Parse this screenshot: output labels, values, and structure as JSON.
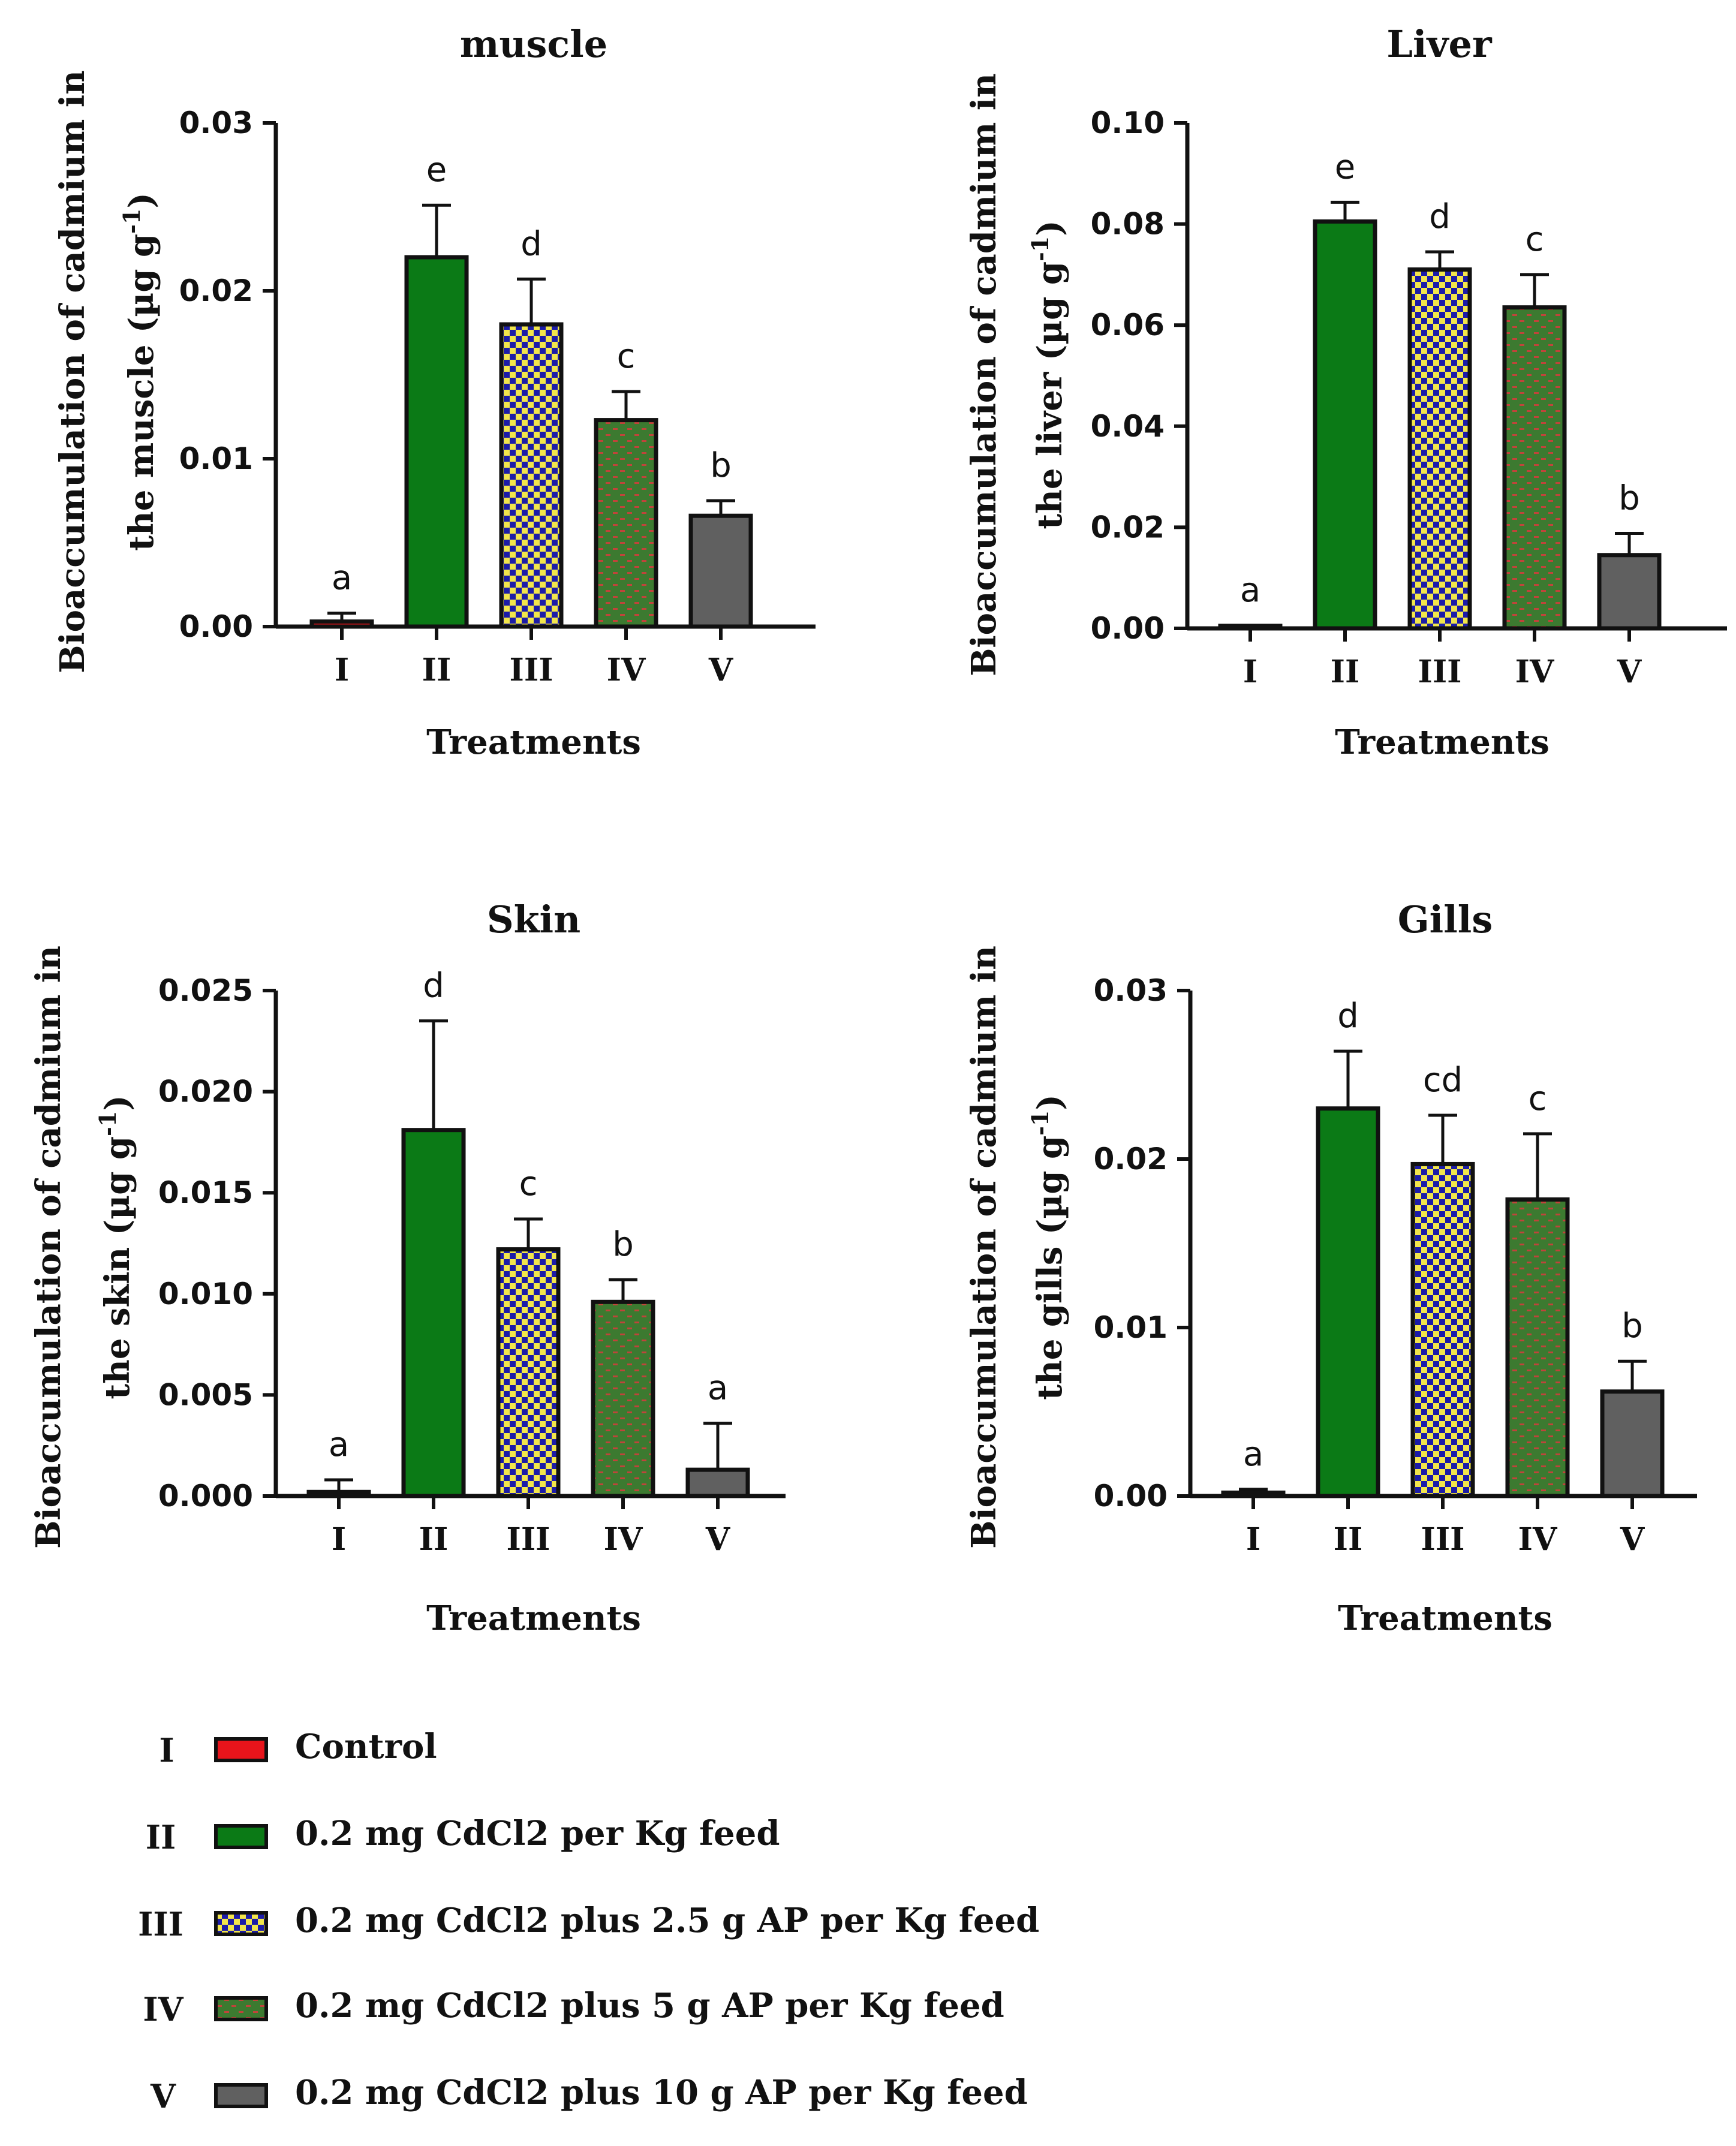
{
  "chart_data": [
    {
      "type": "bar",
      "title": "muscle",
      "ylabel_line1": "Bioaccumulation of cadmium in",
      "ylabel_line2": "the muscle (µg g",
      "ylabel_sup": "-1",
      "ylabel_close": ")",
      "xlabel": "Treatments",
      "categories": [
        "I",
        "II",
        "III",
        "IV",
        "V"
      ],
      "values": [
        0.0003,
        0.022,
        0.018,
        0.0123,
        0.0066
      ],
      "errors": [
        0.0005,
        0.0031,
        0.0027,
        0.0017,
        0.0009
      ],
      "letters": [
        "a",
        "e",
        "d",
        "c",
        "b"
      ],
      "ylim": [
        0,
        0.03
      ],
      "yticks": [
        0,
        0.01,
        0.02,
        0.03
      ],
      "ytick_labels": [
        "0.00",
        "0.01",
        "0.02",
        "0.03"
      ]
    },
    {
      "type": "bar",
      "title": "Liver",
      "ylabel_line1": "Bioaccumulation of cadmium in",
      "ylabel_line2": "the liver (µg g",
      "ylabel_sup": "-1",
      "ylabel_close": ")",
      "xlabel": "Treatments",
      "categories": [
        "I",
        "II",
        "III",
        "IV",
        "V"
      ],
      "values": [
        0.0005,
        0.0805,
        0.071,
        0.0635,
        0.0145
      ],
      "errors": [
        0.0001,
        0.0038,
        0.0035,
        0.0065,
        0.0043
      ],
      "letters": [
        "a",
        "e",
        "d",
        "c",
        "b"
      ],
      "ylim": [
        0,
        0.1
      ],
      "yticks": [
        0,
        0.02,
        0.04,
        0.06,
        0.08,
        0.1
      ],
      "ytick_labels": [
        "0.00",
        "0.02",
        "0.04",
        "0.06",
        "0.08",
        "0.10"
      ]
    },
    {
      "type": "bar",
      "title": "Skin",
      "ylabel_line1": "Bioaccumulation of cadmium in",
      "ylabel_line2": "the skin (µg g",
      "ylabel_sup": "-1",
      "ylabel_close": ")",
      "xlabel": "Treatments",
      "categories": [
        "I",
        "II",
        "III",
        "IV",
        "V"
      ],
      "values": [
        0.0002,
        0.0181,
        0.0122,
        0.0096,
        0.0013
      ],
      "errors": [
        0.0006,
        0.0054,
        0.0015,
        0.0011,
        0.0023
      ],
      "letters": [
        "a",
        "d",
        "c",
        "b",
        "a"
      ],
      "ylim": [
        0,
        0.025
      ],
      "yticks": [
        0,
        0.005,
        0.01,
        0.015,
        0.02,
        0.025
      ],
      "ytick_labels": [
        "0.000",
        "0.005",
        "0.010",
        "0.015",
        "0.020",
        "0.025"
      ]
    },
    {
      "type": "bar",
      "title": "Gills",
      "ylabel_line1": "Bioaccumulation of cadmium in",
      "ylabel_line2": "the gills (µg g",
      "ylabel_sup": "-1",
      "ylabel_close": ")",
      "xlabel": "Treatments",
      "categories": [
        "I",
        "II",
        "III",
        "IV",
        "V"
      ],
      "values": [
        0.0002,
        0.023,
        0.0197,
        0.0176,
        0.0062
      ],
      "errors": [
        0.0002,
        0.0034,
        0.0029,
        0.0039,
        0.0018
      ],
      "letters": [
        "a",
        "d",
        "cd",
        "c",
        "b"
      ],
      "ylim": [
        0,
        0.03
      ],
      "yticks": [
        0,
        0.01,
        0.02,
        0.03
      ],
      "ytick_labels": [
        "0.00",
        "0.01",
        "0.02",
        "0.03"
      ]
    }
  ],
  "legend": [
    {
      "code": "I",
      "label": "Control",
      "fill": "solid-red",
      "color": "#e8141b"
    },
    {
      "code": "II",
      "label": "0.2 mg CdCl2 per Kg feed",
      "fill": "solid-green",
      "color": "#0b7a16"
    },
    {
      "code": "III",
      "label": "0.2 mg CdCl2 plus 2.5 g AP per Kg feed",
      "fill": "checker-blue-yellow",
      "color": "#1c1ca8"
    },
    {
      "code": "IV",
      "label": "0.2 mg CdCl2 plus 5 g AP per Kg feed",
      "fill": "brick-green-red",
      "color": "#3c7a30"
    },
    {
      "code": "V",
      "label": "0.2 mg CdCl2 plus 10 g AP per Kg feed",
      "fill": "solid-gray",
      "color": "#606060"
    }
  ],
  "colors": {
    "axis": "#111111",
    "red": "#e8141b",
    "green": "#0b7a16",
    "blue": "#1c1ca8",
    "yellow": "#f2e64b",
    "brick_green": "#3c7a30",
    "brick_red": "#c0443a",
    "gray": "#606060"
  }
}
